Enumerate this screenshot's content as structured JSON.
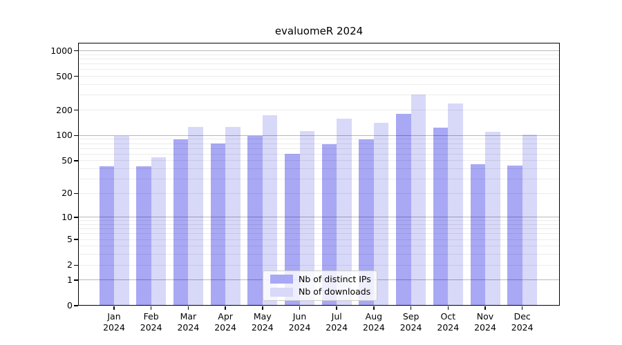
{
  "chart_data": {
    "type": "bar",
    "title": "evaluomeR 2024",
    "categories": [
      "Jan",
      "Feb",
      "Mar",
      "Apr",
      "May",
      "Jun",
      "Jul",
      "Aug",
      "Sep",
      "Oct",
      "Nov",
      "Dec"
    ],
    "year": "2024",
    "series": [
      {
        "name": "Nb of distinct IPs",
        "color": "#a8a8f5",
        "values": [
          43,
          43,
          90,
          80,
          99,
          60,
          78,
          89,
          182,
          123,
          45,
          44
        ]
      },
      {
        "name": "Nb of downloads",
        "color": "#d8d8f8",
        "values": [
          98,
          55,
          127,
          125,
          175,
          113,
          157,
          141,
          303,
          241,
          111,
          103
        ]
      }
    ],
    "yscale": "log1p",
    "yticks": [
      0,
      1,
      2,
      5,
      10,
      20,
      50,
      100,
      200,
      500,
      1000
    ],
    "minor_gridlines": [
      2,
      3,
      4,
      5,
      6,
      7,
      8,
      9,
      20,
      30,
      40,
      50,
      60,
      70,
      80,
      90,
      200,
      300,
      400,
      500,
      600,
      700,
      800,
      900
    ],
    "major_gridlines": [
      1,
      10,
      100,
      1000
    ],
    "ylim": [
      0,
      1250
    ],
    "grid": "both",
    "legend_position": "lower-center-inside",
    "axis_color": "#000000",
    "legend_border_color": "#cccccc"
  }
}
